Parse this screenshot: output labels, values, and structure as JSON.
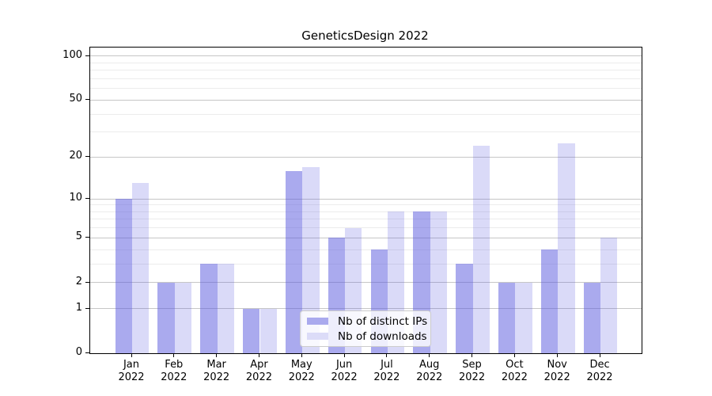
{
  "chart_data": {
    "type": "bar",
    "title": "GeneticsDesign 2022",
    "y_scale": "log1p",
    "ylim": [
      0,
      100
    ],
    "yticks_major": [
      0,
      1,
      2,
      5,
      10,
      20,
      50,
      100
    ],
    "yticks_minor": [
      3,
      4,
      6,
      7,
      8,
      9,
      30,
      40,
      60,
      70,
      80,
      90
    ],
    "grid": true,
    "categories": [
      "Jan",
      "Feb",
      "Mar",
      "Apr",
      "May",
      "Jun",
      "Jul",
      "Aug",
      "Sep",
      "Oct",
      "Nov",
      "Dec"
    ],
    "category_sublabel": "2022",
    "series": [
      {
        "name": "Nb of distinct IPs",
        "color": "rgba(85,85,221,0.5)",
        "legend_color": "#aaaaee",
        "values": [
          10,
          2,
          3,
          1,
          16,
          5,
          4,
          8,
          3,
          2,
          4,
          2
        ]
      },
      {
        "name": "Nb of downloads",
        "color": "rgba(85,85,221,0.22)",
        "legend_color": "#dcdcf8",
        "values": [
          13,
          2,
          3,
          1,
          17,
          6,
          8,
          8,
          24,
          2,
          25,
          5
        ]
      }
    ],
    "legend_position": "lower center"
  },
  "colors": {
    "major_grid": "#c6c6c6",
    "minor_grid": "#ececec",
    "axis": "#000000",
    "legend_border": "#cccccc",
    "legend_bg": "rgba(255,255,255,0.8)"
  }
}
